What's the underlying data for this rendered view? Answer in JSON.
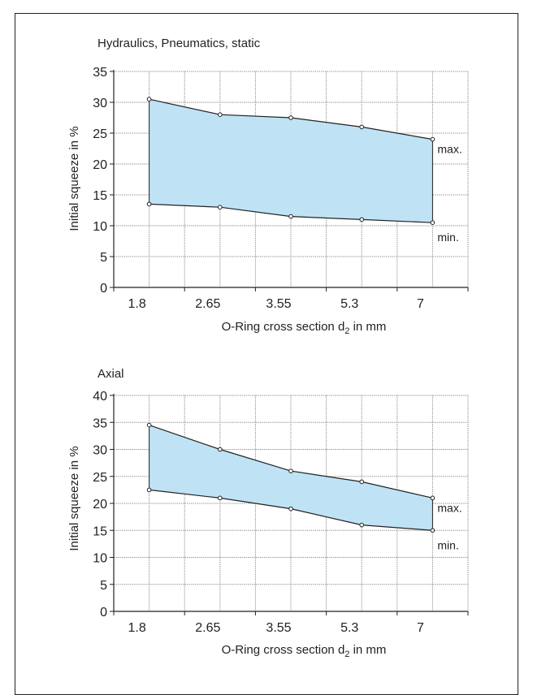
{
  "chart_data": [
    {
      "type": "area",
      "title": "Hydraulics, Pneumatics, static",
      "xlabel": "O-Ring cross section d",
      "xlabel_sub": "2",
      "xlabel_suffix": " in mm",
      "ylabel": "Initial squeeze in %",
      "categories": [
        "1.8",
        "2.65",
        "3.55",
        "5.3",
        "7"
      ],
      "ylim": [
        0,
        35
      ],
      "yticks": [
        "0",
        "5",
        "10",
        "15",
        "20",
        "25",
        "30",
        "35"
      ],
      "grid": true,
      "series": [
        {
          "name": "max.",
          "values": [
            30.5,
            28,
            27.5,
            26,
            24
          ]
        },
        {
          "name": "min.",
          "values": [
            13.5,
            13,
            11.5,
            11,
            10.5
          ]
        }
      ],
      "fill_color": "#bfe3f5"
    },
    {
      "type": "area",
      "title": "Axial",
      "xlabel": "O-Ring cross section d",
      "xlabel_sub": "2",
      "xlabel_suffix": " in mm",
      "ylabel": "Initial squeeze in %",
      "categories": [
        "1.8",
        "2.65",
        "3.55",
        "5.3",
        "7"
      ],
      "ylim": [
        0,
        40
      ],
      "yticks": [
        "0",
        "5",
        "10",
        "15",
        "20",
        "25",
        "30",
        "35",
        "40"
      ],
      "grid": true,
      "series": [
        {
          "name": "max.",
          "values": [
            34.5,
            30,
            26,
            24,
            21
          ]
        },
        {
          "name": "min.",
          "values": [
            22.5,
            21,
            19,
            16,
            15
          ]
        }
      ],
      "fill_color": "#bfe3f5"
    }
  ]
}
